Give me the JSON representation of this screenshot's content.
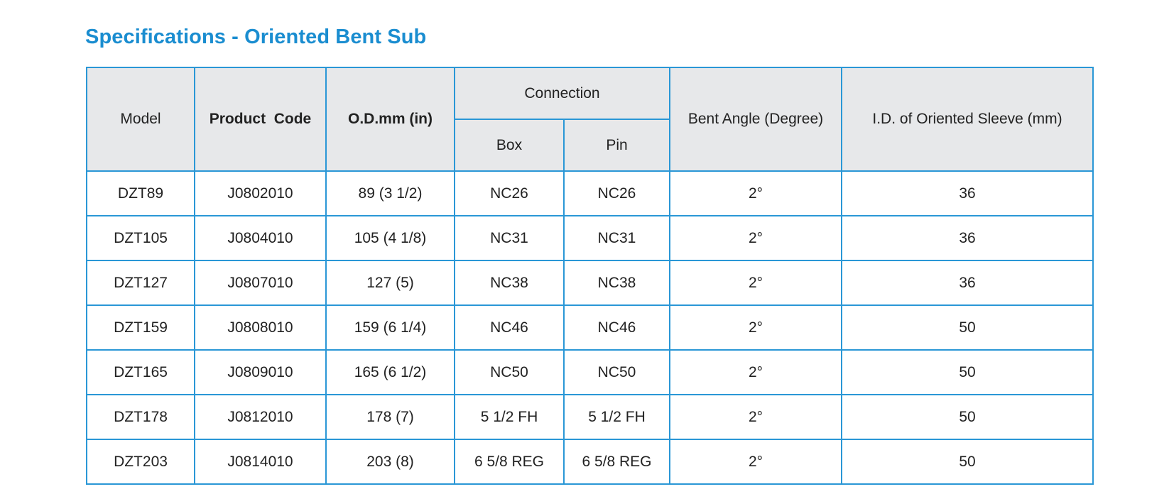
{
  "title": "Specifications - Oriented Bent Sub",
  "table": {
    "headers": {
      "model": "Model",
      "product_code": "Product  Code",
      "od": "O.D.mm (in)",
      "connection": "Connection",
      "box": "Box",
      "pin": "Pin",
      "bent_angle": "Bent Angle (Degree)",
      "id_sleeve": "I.D. of Oriented Sleeve (mm)"
    },
    "rows": [
      {
        "model": "DZT89",
        "code": "J0802010",
        "od": "89 (3 1/2)",
        "box": "NC26",
        "pin": "NC26",
        "angle": "2°",
        "id": "36"
      },
      {
        "model": "DZT105",
        "code": "J0804010",
        "od": "105 (4 1/8)",
        "box": "NC31",
        "pin": "NC31",
        "angle": "2°",
        "id": "36"
      },
      {
        "model": "DZT127",
        "code": "J0807010",
        "od": "127 (5)",
        "box": "NC38",
        "pin": "NC38",
        "angle": "2°",
        "id": "36"
      },
      {
        "model": "DZT159",
        "code": "J0808010",
        "od": "159 (6 1/4)",
        "box": "NC46",
        "pin": "NC46",
        "angle": "2°",
        "id": "50"
      },
      {
        "model": "DZT165",
        "code": "J0809010",
        "od": "165 (6 1/2)",
        "box": "NC50",
        "pin": "NC50",
        "angle": "2°",
        "id": "50"
      },
      {
        "model": "DZT178",
        "code": "J0812010",
        "od": "178 (7)",
        "box": "5 1/2 FH",
        "pin": "5 1/2 FH",
        "angle": "2°",
        "id": "50"
      },
      {
        "model": "DZT203",
        "code": "J0814010",
        "od": "203 (8)",
        "box": "6 5/8 REG",
        "pin": "6 5/8 REG",
        "angle": "2°",
        "id": "50"
      }
    ]
  }
}
